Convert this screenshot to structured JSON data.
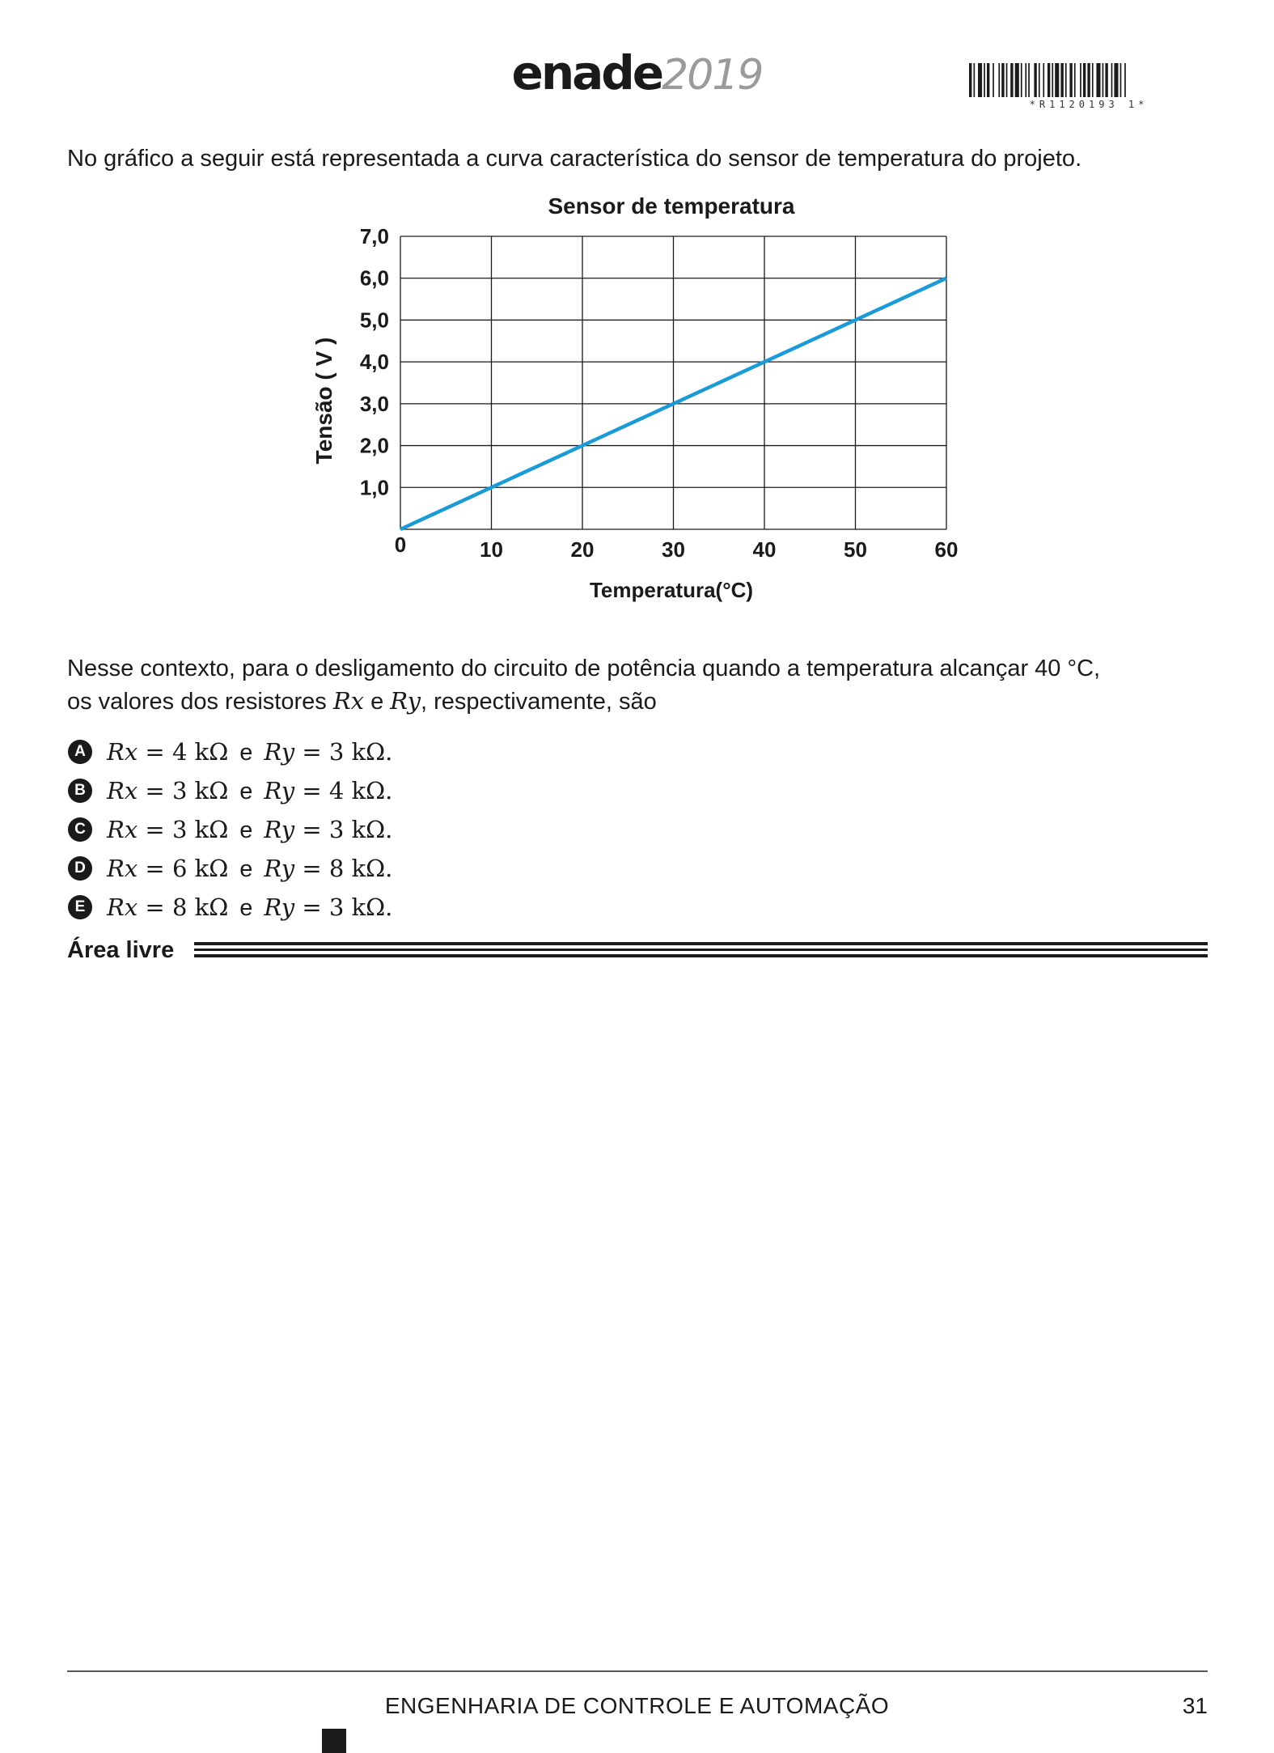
{
  "header": {
    "logo_word": "enade",
    "logo_year": "2019",
    "barcode_text": "*R1120193 1*"
  },
  "intro": "No gráfico a seguir está representada a curva característica do sensor de temperatura do projeto.",
  "chart_data": {
    "type": "line",
    "title": "Sensor de temperatura",
    "xlabel": "Temperatura(°C)",
    "ylabel": "Tensão ( V )",
    "x_ticks": [
      "0",
      "10",
      "20",
      "30",
      "40",
      "50",
      "60"
    ],
    "y_ticks": [
      "1,0",
      "2,0",
      "3,0",
      "4,0",
      "5,0",
      "6,0",
      "7,0"
    ],
    "xlim": [
      0,
      60
    ],
    "ylim": [
      0,
      7
    ],
    "grid": true,
    "series": [
      {
        "x": [
          0,
          60
        ],
        "y": [
          0,
          6
        ],
        "color": "#1a9bd7"
      }
    ]
  },
  "context": {
    "line1": "Nesse contexto, para o desligamento do circuito de potência quando a temperatura alcançar 40 °C,",
    "line2_pre": "os valores dos resistores ",
    "var_x": "Rx",
    "conj": " e ",
    "var_y": "Ry",
    "line2_post": ", respectivamente, são"
  },
  "options": [
    {
      "letter": "A",
      "rx": "4",
      "ry": "3"
    },
    {
      "letter": "B",
      "rx": "3",
      "ry": "4"
    },
    {
      "letter": "C",
      "rx": "3",
      "ry": "3"
    },
    {
      "letter": "D",
      "rx": "6",
      "ry": "8"
    },
    {
      "letter": "E",
      "rx": "8",
      "ry": "3"
    }
  ],
  "option_parts": {
    "rx": "Rx",
    "ry": "Ry",
    "eq": " = ",
    "unit": " kΩ",
    "and": "e",
    "end": "."
  },
  "area_livre": "Área livre",
  "footer": {
    "course": "ENGENHARIA DE CONTROLE E AUTOMAÇÃO",
    "page": "31"
  }
}
